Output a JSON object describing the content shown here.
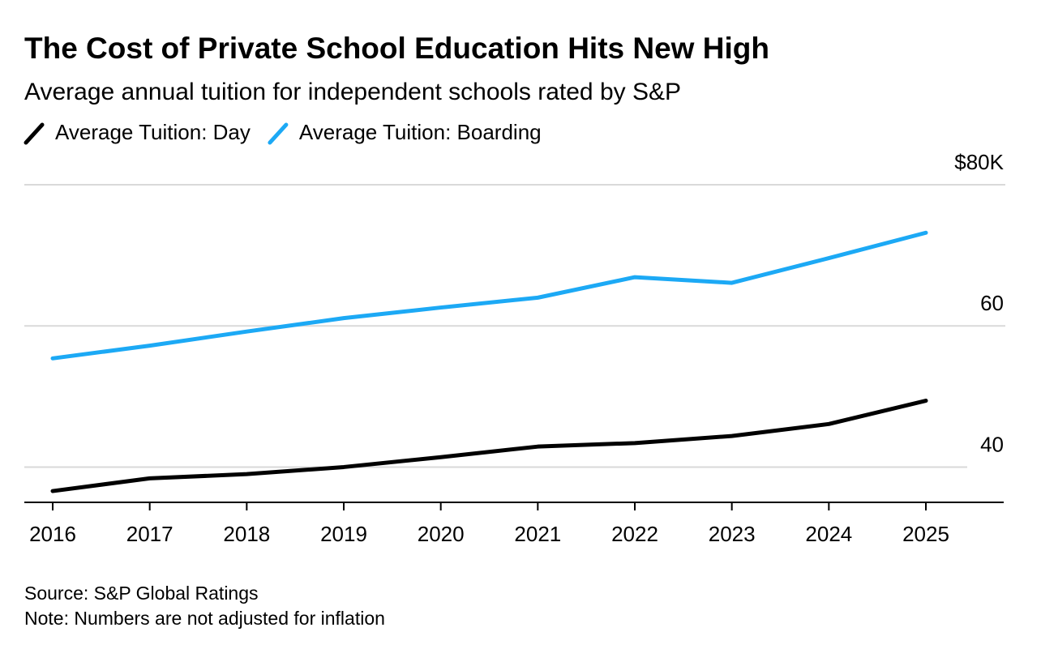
{
  "chart_data": {
    "type": "line",
    "title": "The Cost of Private School Education Hits New High",
    "subtitle": "Average annual tuition for independent schools rated by S&P",
    "categories": [
      "2016",
      "2017",
      "2018",
      "2019",
      "2020",
      "2021",
      "2022",
      "2023",
      "2024",
      "2025"
    ],
    "series": [
      {
        "name": "Average Tuition: Day",
        "color": "#000000",
        "values": [
          36.6,
          38.4,
          39.0,
          40.0,
          41.4,
          42.9,
          43.4,
          44.4,
          46.1,
          49.4
        ]
      },
      {
        "name": "Average Tuition: Boarding",
        "color": "#1ca9f5",
        "values": [
          55.4,
          57.2,
          59.2,
          61.1,
          62.6,
          64.0,
          66.9,
          66.1,
          69.6,
          73.2
        ]
      }
    ],
    "ylim": [
      35,
      80
    ],
    "yticks": [
      40,
      60,
      {
        "value": 80,
        "label": "$80K"
      }
    ],
    "grid": true,
    "source": "Source: S&P Global Ratings",
    "note": "Note: Numbers are not adjusted for inflation"
  }
}
